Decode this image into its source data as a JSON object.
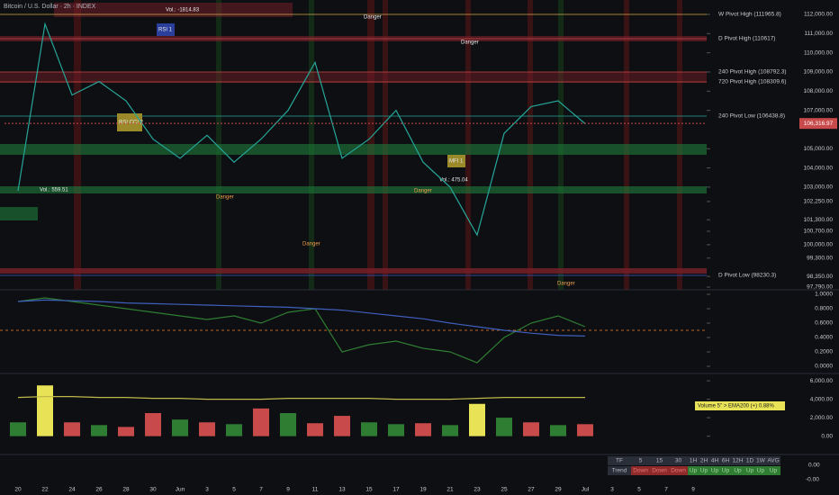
{
  "header": {
    "title": "Bitcoin / U.S. Dollar · 2h · INDEX"
  },
  "chart_data": [
    {
      "type": "line",
      "categories": [
        "20",
        "22",
        "24",
        "26",
        "28",
        "30",
        "Jun",
        "3",
        "5",
        "7",
        "9",
        "11",
        "13",
        "15",
        "17",
        "19",
        "21",
        "23",
        "25",
        "27",
        "29",
        "Jul",
        "3",
        "5",
        "7",
        "9"
      ],
      "series": [
        {
          "color": "#26a69a",
          "values": [
            102800,
            111500,
            107800,
            108500,
            107500,
            105500,
            104500,
            105700,
            104300,
            105500,
            107000,
            109500,
            104500,
            105500,
            107000,
            104300,
            103000,
            100500,
            105800,
            107200,
            107500,
            106300,
            null,
            null,
            null,
            null
          ]
        }
      ],
      "ylim": [
        97650,
        112750
      ],
      "yticks": [
        {
          "value": 112000,
          "label": "112,000.00"
        },
        {
          "value": 111000,
          "label": "111,000.00"
        },
        {
          "value": 110000,
          "label": "110,000.00"
        },
        {
          "value": 109000,
          "label": "109,000.00"
        },
        {
          "value": 108000,
          "label": "108,000.00"
        },
        {
          "value": 107000,
          "label": "107,000.00"
        },
        {
          "value": 105000,
          "label": "105,000.00"
        },
        {
          "value": 104000,
          "label": "104,000.00"
        },
        {
          "value": 103000,
          "label": "103,000.00"
        },
        {
          "value": 102250,
          "label": "102,250.00"
        },
        {
          "value": 101300,
          "label": "101,300.00"
        },
        {
          "value": 100700,
          "label": "100,700.00"
        },
        {
          "value": 100000,
          "label": "100,000.00"
        },
        {
          "value": 99300,
          "label": "99,300.00"
        },
        {
          "value": 98350,
          "label": "98,350.00"
        },
        {
          "value": 97790,
          "label": "97,790.00"
        }
      ],
      "last_price": {
        "value": 106316.97,
        "label": "106,316.97"
      }
    },
    {
      "type": "line",
      "series": [
        {
          "color": "#2e7d32",
          "values": [
            0.9,
            0.95,
            0.9,
            0.85,
            0.8,
            0.75,
            0.7,
            0.65,
            0.7,
            0.6,
            0.75,
            0.8,
            0.2,
            0.3,
            0.35,
            0.25,
            0.2,
            0.05,
            0.4,
            0.6,
            0.7,
            0.55,
            null,
            null,
            null,
            null
          ]
        },
        {
          "color": "#3f5fbf",
          "values": [
            0.9,
            0.92,
            0.91,
            0.9,
            0.88,
            0.87,
            0.86,
            0.85,
            0.84,
            0.83,
            0.82,
            0.8,
            0.78,
            0.74,
            0.7,
            0.66,
            0.6,
            0.55,
            0.5,
            0.46,
            0.43,
            0.42,
            null,
            null,
            null,
            null
          ]
        }
      ],
      "ylim": [
        -0.05,
        1.05
      ],
      "yticks": [
        {
          "value": 1,
          "label": "1.0000"
        },
        {
          "value": 0.8,
          "label": "0.8000"
        },
        {
          "value": 0.6,
          "label": "0.6000"
        },
        {
          "value": 0.4,
          "label": "0.4000"
        },
        {
          "value": 0.2,
          "label": "0.2000"
        },
        {
          "value": 0,
          "label": "0.0000"
        }
      ]
    },
    {
      "type": "bar",
      "series": [
        {
          "colors": [
            "#2e7d32",
            "#e8e356",
            "#c94a4a",
            "#2e7d32",
            "#c94a4a",
            "#c94a4a",
            "#2e7d32",
            "#c94a4a",
            "#2e7d32",
            "#c94a4a",
            "#2e7d32",
            "#c94a4a",
            "#c94a4a",
            "#2e7d32",
            "#2e7d32",
            "#c94a4a",
            "#2e7d32",
            "#e8e356",
            "#2e7d32",
            "#c94a4a",
            "#2e7d32",
            "#c94a4a",
            null,
            null,
            null,
            null
          ],
          "values": [
            1500,
            5500,
            1500,
            1200,
            1000,
            2500,
            1800,
            1500,
            1300,
            3000,
            2500,
            1400,
            2200,
            1500,
            1300,
            1400,
            1200,
            3500,
            2000,
            1500,
            1200,
            1300,
            null,
            null,
            null,
            null
          ]
        },
        {
          "type": "line",
          "color": "#bfb84a",
          "values": [
            4200,
            4300,
            4300,
            4200,
            4200,
            4100,
            4100,
            4000,
            4000,
            4000,
            4100,
            4100,
            4100,
            4100,
            4000,
            4000,
            4000,
            4100,
            4200,
            4200,
            4200,
            4200,
            null,
            null,
            null,
            null
          ]
        }
      ],
      "ylim": [
        -1500,
        6500
      ],
      "yticks": [
        {
          "value": 6000,
          "label": "6,000.00"
        },
        {
          "value": 4000,
          "label": "4,000.00"
        },
        {
          "value": 2000,
          "label": "2,000.00"
        },
        {
          "value": 0,
          "label": "0.00"
        }
      ],
      "note": "Volume 5\" > EMA200 (+) 0.88%"
    }
  ],
  "pivots": [
    "W Pivot High (111965.8)",
    "D Pivot High (110617)",
    "240 Pivot High (108792.3)",
    "720 Pivot High (108309.6)",
    "240 Pivot Low (106438.8)",
    "D Pivot Low (98230.3)"
  ],
  "annotations": [
    "Danger",
    "Danger",
    "Danger",
    "Danger",
    "Danger",
    "Danger",
    "Vol.: 475.04",
    "Vol.: 559.51",
    "Vol.: -1814.83",
    "RSI 1",
    "RSI CCI 2",
    "MFI 1"
  ],
  "trend_table": {
    "header": [
      "TF",
      "5",
      "15",
      "30",
      "1H",
      "2H",
      "4H",
      "6H",
      "12H",
      "1D",
      "1W",
      "AVG"
    ],
    "row": [
      "Trend",
      "Down",
      "Down",
      "Down",
      "Up",
      "Up",
      "Up",
      "Up",
      "Up",
      "Up",
      "Up",
      "Up"
    ],
    "axis_labels": [
      "0.00",
      "-0.00"
    ]
  }
}
